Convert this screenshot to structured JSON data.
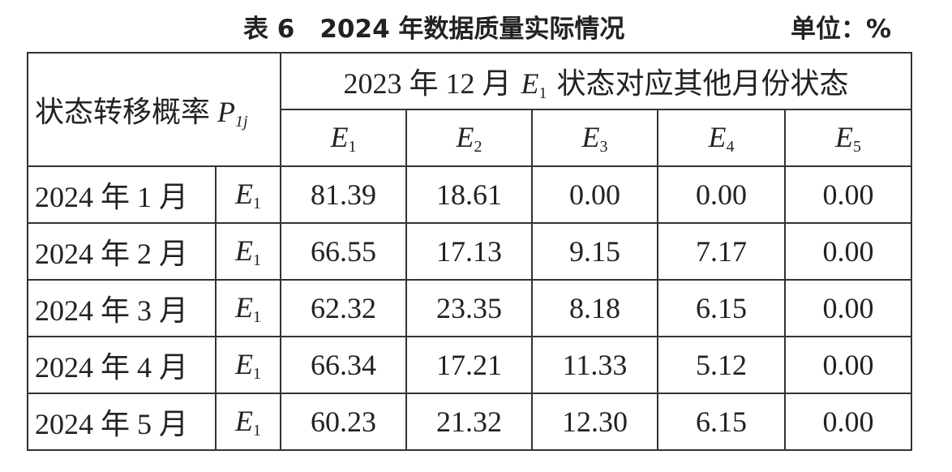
{
  "header": {
    "title": "表 6　2024 年数据质量实际情况",
    "unit": "单位：%"
  },
  "table": {
    "corner": {
      "text": "状态转移概率",
      "var": "P",
      "sub": "1j"
    },
    "group": {
      "before": "2023 年 12 月",
      "var": "E",
      "sub": "1",
      "after": "状态对应其他月份状态"
    },
    "columns": [
      {
        "var": "E",
        "sub": "1"
      },
      {
        "var": "E",
        "sub": "2"
      },
      {
        "var": "E",
        "sub": "3"
      },
      {
        "var": "E",
        "sub": "4"
      },
      {
        "var": "E",
        "sub": "5"
      }
    ],
    "rows": [
      {
        "month": "2024 年 1 月",
        "state": {
          "var": "E",
          "sub": "1"
        },
        "values": [
          "81.39",
          "18.61",
          "0.00",
          "0.00",
          "0.00"
        ]
      },
      {
        "month": "2024 年 2 月",
        "state": {
          "var": "E",
          "sub": "1"
        },
        "values": [
          "66.55",
          "17.13",
          "9.15",
          "7.17",
          "0.00"
        ]
      },
      {
        "month": "2024 年 3 月",
        "state": {
          "var": "E",
          "sub": "1"
        },
        "values": [
          "62.32",
          "23.35",
          "8.18",
          "6.15",
          "0.00"
        ]
      },
      {
        "month": "2024 年 4 月",
        "state": {
          "var": "E",
          "sub": "1"
        },
        "values": [
          "66.34",
          "17.21",
          "11.33",
          "5.12",
          "0.00"
        ]
      },
      {
        "month": "2024 年 5 月",
        "state": {
          "var": "E",
          "sub": "1"
        },
        "values": [
          "60.23",
          "21.32",
          "12.30",
          "6.15",
          "0.00"
        ]
      }
    ]
  }
}
